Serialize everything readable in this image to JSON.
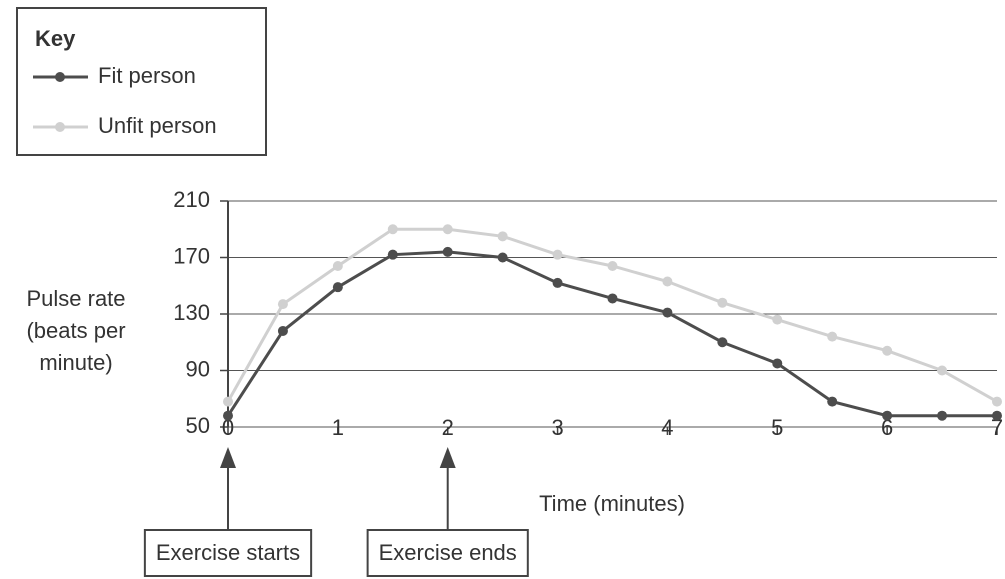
{
  "chart_data": {
    "type": "line",
    "legend_title": "Key",
    "x_label": "Time (minutes)",
    "y_label": "Pulse rate (beats per minute)",
    "x": [
      0,
      0.5,
      1,
      1.5,
      2,
      2.5,
      3,
      3.5,
      4,
      4.5,
      5,
      5.5,
      6,
      6.5,
      7
    ],
    "series": [
      {
        "name": "Fit person",
        "color": "#4d4d4d",
        "values": [
          58,
          118,
          149,
          172,
          174,
          170,
          152,
          141,
          131,
          110,
          95,
          68,
          58,
          58,
          58
        ]
      },
      {
        "name": "Unfit person",
        "color": "#d0d0d0",
        "values": [
          68,
          137,
          164,
          190,
          190,
          185,
          172,
          164,
          153,
          138,
          126,
          114,
          104,
          90,
          68
        ]
      }
    ],
    "xlim": [
      0,
      7
    ],
    "xticks": [
      0,
      1,
      2,
      3,
      4,
      5,
      6,
      7
    ],
    "ylim": [
      50,
      210
    ],
    "yticks": [
      50,
      90,
      130,
      170,
      210
    ],
    "grid": true,
    "legend": "top-left",
    "annotations": [
      {
        "text": "Exercise starts",
        "x": 0
      },
      {
        "text": "Exercise ends",
        "x": 2
      }
    ]
  }
}
